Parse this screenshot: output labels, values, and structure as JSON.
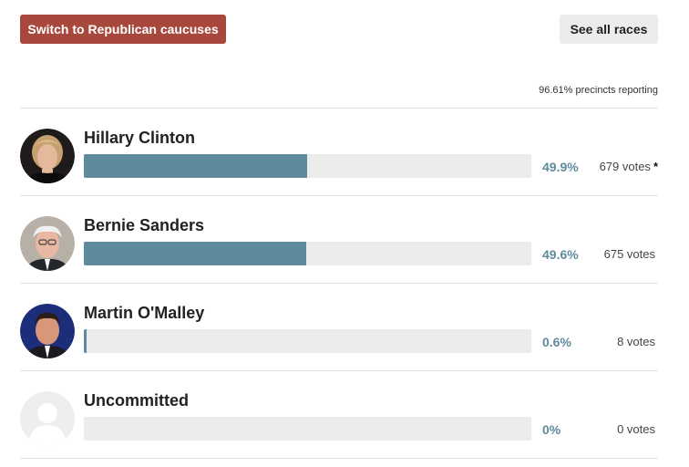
{
  "header": {
    "switch_label": "Switch to Republican caucuses",
    "races_label": "See all races"
  },
  "reporting": {
    "text": "96.61% precincts reporting"
  },
  "candidates": [
    {
      "name": "Hillary Clinton",
      "pct_label": "49.9%",
      "pct_value": 49.9,
      "votes_label": "679 votes",
      "winner_mark": "*",
      "avatar_icon": "candidate-photo"
    },
    {
      "name": "Bernie Sanders",
      "pct_label": "49.6%",
      "pct_value": 49.6,
      "votes_label": "675 votes",
      "winner_mark": "",
      "avatar_icon": "candidate-photo"
    },
    {
      "name": "Martin O'Malley",
      "pct_label": "0.6%",
      "pct_value": 0.6,
      "votes_label": "8 votes",
      "winner_mark": "",
      "avatar_icon": "candidate-photo"
    },
    {
      "name": "Uncommitted",
      "pct_label": "0%",
      "pct_value": 0,
      "votes_label": "0 votes",
      "winner_mark": "",
      "avatar_icon": "placeholder-person-icon"
    }
  ],
  "colors": {
    "switch_button": "#a8473b",
    "bar_fill": "#5e8a9e",
    "bar_track": "#ececec"
  }
}
